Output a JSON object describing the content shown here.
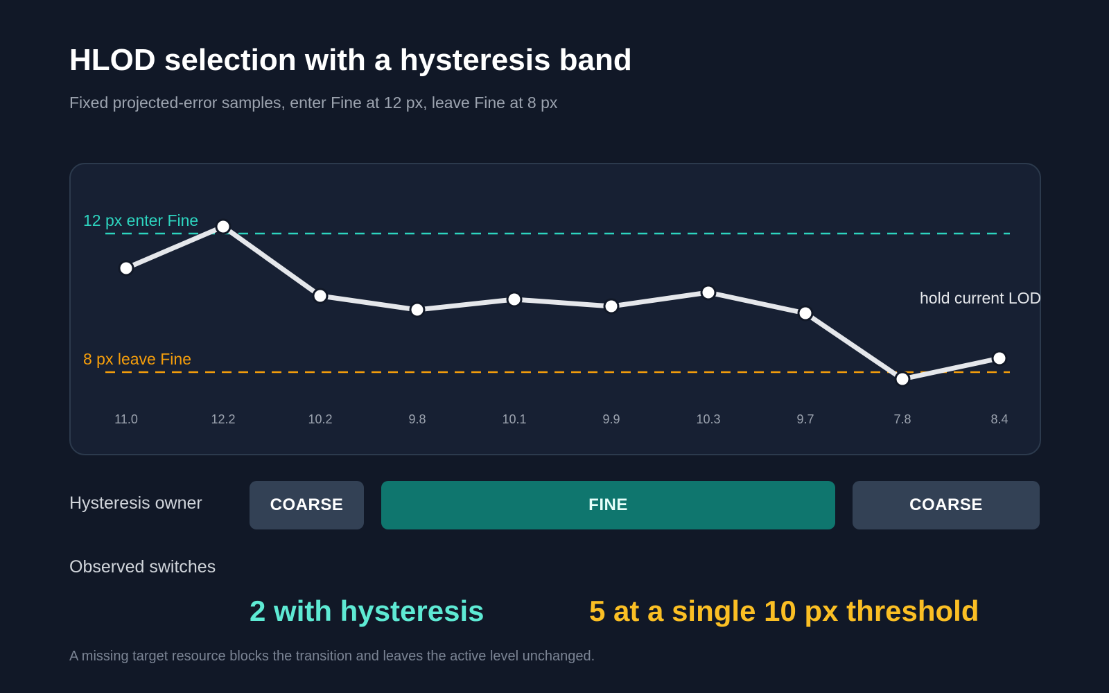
{
  "header": {
    "title": "HLOD selection with a hysteresis band",
    "subtitle": "Fixed projected-error samples, enter Fine at 12 px, leave Fine at 8 px"
  },
  "chart_data": {
    "type": "line",
    "title": "",
    "xlabel": "",
    "ylabel": "",
    "x_tick_labels": [
      "11.0",
      "12.2",
      "10.2",
      "9.8",
      "10.1",
      "9.9",
      "10.3",
      "9.7",
      "7.8",
      "8.4"
    ],
    "series": [
      {
        "values": [
          11.0,
          12.2,
          10.2,
          9.8,
          10.1,
          9.9,
          10.3,
          9.7,
          7.8,
          8.4
        ]
      }
    ],
    "thresholds": [
      {
        "value": 12,
        "label": "12 px enter Fine",
        "color": "#2dd4bf"
      },
      {
        "value": 8,
        "label": "8 px leave Fine",
        "color": "#f59e0b"
      }
    ],
    "annotation": "hold current LOD",
    "grid": false,
    "colors": {
      "line": "#e5e7eb",
      "marker_fill": "#ffffff",
      "marker_stroke": "#111827"
    }
  },
  "owner": {
    "label": "Hysteresis owner",
    "segments": [
      {
        "label": "COARSE",
        "state": "coarse"
      },
      {
        "label": "FINE",
        "state": "fine"
      },
      {
        "label": "COARSE",
        "state": "coarse"
      }
    ]
  },
  "switches": {
    "label": "Observed switches",
    "with_hysteresis": "2 with hysteresis",
    "single_threshold": "5 at a single 10 px threshold"
  },
  "footnote": "A missing target resource blocks the transition and leaves the active level unchanged.",
  "colors": {
    "background": "#111827",
    "panel": "#172033",
    "enter": "#2dd4bf",
    "leave": "#f59e0b",
    "fine_segment": "#0f766e",
    "coarse_segment": "#334155"
  }
}
